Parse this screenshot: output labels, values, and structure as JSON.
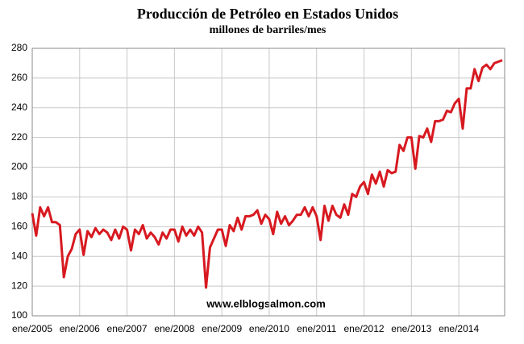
{
  "chart_data": {
    "type": "line",
    "title": "Producción de Petróleo en Estados Unidos",
    "subtitle": "millones de barriles/mes",
    "watermark": "www.elblogsalmon.com",
    "categories": [
      "ene/2005",
      null,
      null,
      null,
      null,
      null,
      null,
      null,
      null,
      null,
      null,
      null,
      "ene/2006",
      null,
      null,
      null,
      null,
      null,
      null,
      null,
      null,
      null,
      null,
      null,
      "ene/2007",
      null,
      null,
      null,
      null,
      null,
      null,
      null,
      null,
      null,
      null,
      null,
      "ene/2008",
      null,
      null,
      null,
      null,
      null,
      null,
      null,
      null,
      null,
      null,
      null,
      "ene/2009",
      null,
      null,
      null,
      null,
      null,
      null,
      null,
      null,
      null,
      null,
      null,
      "ene/2010",
      null,
      null,
      null,
      null,
      null,
      null,
      null,
      null,
      null,
      null,
      null,
      "ene/2011",
      null,
      null,
      null,
      null,
      null,
      null,
      null,
      null,
      null,
      null,
      null,
      "ene/2012",
      null,
      null,
      null,
      null,
      null,
      null,
      null,
      null,
      null,
      null,
      null,
      "ene/2013",
      null,
      null,
      null,
      null,
      null,
      null,
      null,
      null,
      null,
      null,
      null,
      "ene/2014",
      null,
      null,
      null,
      null,
      null,
      null,
      null,
      null,
      null,
      null,
      null
    ],
    "series": [
      {
        "color": "#d71920",
        "values": [
          169,
          154,
          173,
          167,
          173,
          163,
          163,
          161,
          126,
          140,
          145,
          155,
          158,
          141,
          157,
          153,
          159,
          155,
          158,
          156,
          151,
          158,
          152,
          160,
          158,
          144,
          158,
          155,
          161,
          152,
          156,
          153,
          148,
          156,
          152,
          158,
          158,
          150,
          160,
          154,
          158,
          154,
          160,
          156,
          119,
          146,
          152,
          158,
          158,
          147,
          161,
          157,
          166,
          158,
          167,
          167,
          168,
          171,
          162,
          168,
          165,
          155,
          170,
          162,
          167,
          161,
          164,
          168,
          168,
          173,
          167,
          173,
          167,
          151,
          174,
          164,
          174,
          168,
          166,
          175,
          168,
          182,
          180,
          187,
          190,
          182,
          195,
          189,
          197,
          187,
          198,
          196,
          197,
          215,
          211,
          220,
          220,
          199,
          221,
          220,
          226,
          217,
          231,
          231,
          232,
          238,
          237,
          243,
          246,
          226,
          253,
          253,
          266,
          258,
          267,
          269,
          266,
          270,
          271,
          272
        ]
      }
    ],
    "ylim": [
      100,
      280
    ],
    "yticks": [
      100,
      120,
      140,
      160,
      180,
      200,
      220,
      240,
      260,
      280
    ],
    "grid": true
  }
}
